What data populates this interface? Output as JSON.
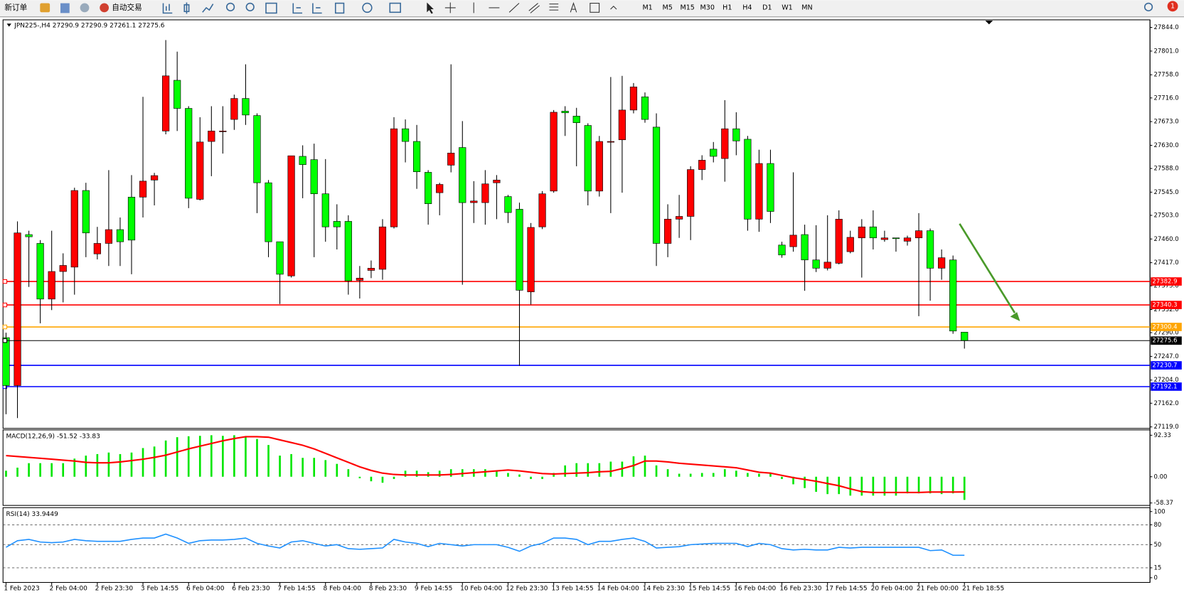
{
  "toolbar": {
    "new_order": "新订单",
    "auto_trading": "自动交易",
    "timeframes": [
      "M1",
      "M5",
      "M15",
      "M30",
      "H1",
      "H4",
      "D1",
      "W1",
      "MN"
    ],
    "notifications": 1
  },
  "chart_data": [
    {
      "type": "candlestick",
      "symbol": "JPN225-,H4",
      "categories": [
        "1 Feb 2023",
        null,
        null,
        null,
        "2 Feb 04:00",
        null,
        null,
        null,
        "2 Feb 23:30",
        null,
        null,
        null,
        "3 Feb 14:55",
        null,
        null,
        null,
        "6 Feb 04:00",
        null,
        null,
        null,
        "6 Feb 23:30",
        null,
        null,
        null,
        "7 Feb 14:55",
        null,
        null,
        null,
        "8 Feb 04:00",
        null,
        null,
        null,
        "8 Feb 23:30",
        null,
        null,
        null,
        "9 Feb 14:55",
        null,
        null,
        null,
        "10 Feb 04:00",
        null,
        null,
        null,
        "12 Feb 23:30",
        null,
        null,
        null,
        "13 Feb 14:55",
        null,
        null,
        null,
        "14 Feb 04:00",
        null,
        null,
        null,
        "14 Feb 23:30",
        null,
        null,
        null,
        "15 Feb 14:55",
        null,
        null,
        null,
        "16 Feb 04:00",
        null,
        null,
        null,
        "16 Feb 23:30",
        null,
        null,
        null,
        "17 Feb 14:55",
        null,
        null,
        null,
        "20 Feb 04:00",
        null,
        null,
        null,
        "21 Feb 00:00",
        null,
        null,
        null,
        "21 Feb 18:55"
      ],
      "open": [
        27281,
        27194,
        27468,
        27452,
        27351,
        27401,
        27409,
        27548,
        27433,
        27452,
        27477,
        27536,
        27536,
        27567,
        27656,
        27748,
        27697,
        27532,
        27637,
        27655,
        27677,
        27715,
        27684,
        27562,
        27455,
        27393,
        27610,
        27604,
        27542,
        27492,
        27492,
        27385,
        27403,
        27405,
        27482,
        27660,
        27637,
        27581,
        27544,
        27594,
        27626,
        27526,
        27526,
        27562,
        27537,
        27514,
        27364,
        27482,
        27547,
        27692,
        27683,
        27666,
        27547,
        27636,
        27640,
        27694,
        27718,
        27663,
        27452,
        27496,
        27501,
        27586,
        27623,
        27606,
        27660,
        27641,
        27496,
        27597,
        27449,
        27446,
        27468,
        27422,
        27407,
        27416,
        27437,
        27462,
        27482,
        27459,
        27462,
        27456,
        27462,
        27475,
        27407,
        27422,
        27290.9
      ],
      "high": [
        27290,
        27492,
        27475,
        27458,
        27475,
        27434,
        27553,
        27562,
        27482,
        27585,
        27499,
        27576,
        27718,
        27580,
        27821,
        27800,
        27701,
        27681,
        27701,
        27701,
        27722,
        27777,
        27688,
        27567,
        27455,
        27611,
        27630,
        27633,
        27605,
        27523,
        27503,
        27411,
        27421,
        27496,
        27681,
        27677,
        27667,
        27585,
        27562,
        27777,
        27674,
        27565,
        27585,
        27576,
        27540,
        27526,
        27489,
        27547,
        27694,
        27701,
        27698,
        27670,
        27647,
        27754,
        27756,
        27743,
        27726,
        27688,
        27523,
        27540,
        27592,
        27612,
        27636,
        27712,
        27690,
        27647,
        27622,
        27622,
        27455,
        27581,
        27486,
        27485,
        27503,
        27512,
        27475,
        27496,
        27512,
        27475,
        27462,
        27466,
        27507,
        27479,
        27441,
        27430,
        27290.9
      ],
      "low": [
        27142,
        27135,
        27373,
        27307,
        27331,
        27345,
        27359,
        27427,
        27423,
        27411,
        27411,
        27396,
        27499,
        27521,
        27650,
        27656,
        27516,
        27530,
        27574,
        27615,
        27658,
        27667,
        27507,
        27427,
        27342,
        27390,
        27534,
        27427,
        27455,
        27441,
        27359,
        27352,
        27389,
        27386,
        27479,
        27599,
        27551,
        27486,
        27503,
        27581,
        27377,
        27489,
        27486,
        27496,
        27489,
        27230,
        27341,
        27478,
        27544,
        27647,
        27592,
        27521,
        27537,
        27507,
        27544,
        27688,
        27671,
        27411,
        27427,
        27462,
        27458,
        27567,
        27599,
        27564,
        27612,
        27475,
        27473,
        27489,
        27426,
        27437,
        27366,
        27400,
        27403,
        27414,
        27434,
        27390,
        27441,
        27455,
        27437,
        27448,
        27320,
        27348,
        27386,
        27288,
        27261.1
      ],
      "close": [
        27194,
        27471,
        27464,
        27351,
        27401,
        27412,
        27548,
        27471,
        27452,
        27477,
        27455,
        27458,
        27565,
        27575,
        27756,
        27697,
        27534,
        27636,
        27656,
        27656,
        27715,
        27685,
        27562,
        27455,
        27396,
        27611,
        27595,
        27542,
        27482,
        27482,
        27384,
        27389,
        27407,
        27482,
        27660,
        27637,
        27582,
        27524,
        27559,
        27616,
        27526,
        27529,
        27560,
        27567,
        27508,
        27367,
        27481,
        27542,
        27690,
        27689,
        27671,
        27547,
        27637,
        27637,
        27694,
        27736,
        27677,
        27452,
        27496,
        27501,
        27586,
        27603,
        27610,
        27660,
        27638,
        27496,
        27597,
        27510,
        27431,
        27467,
        27422,
        27407,
        27418,
        27496,
        27463,
        27482,
        27462,
        27462,
        27461,
        27462,
        27475,
        27407,
        27426,
        27293,
        27275.6
      ],
      "up_color": "#ff0000",
      "down_color": "#00ff00",
      "current_color": "#000000",
      "ylim": [
        27116.3,
        27857.7
      ],
      "yticks": [
        {
          "value": 27844,
          "label": "27844.0"
        },
        {
          "value": 27801,
          "label": "27801.0"
        },
        {
          "value": 27758,
          "label": "27758.0"
        },
        {
          "value": 27716,
          "label": "27716.0"
        },
        {
          "value": 27673,
          "label": "27673.0"
        },
        {
          "value": 27630,
          "label": "27630.0"
        },
        {
          "value": 27588,
          "label": "27588.0"
        },
        {
          "value": 27545,
          "label": "27545.0"
        },
        {
          "value": 27503,
          "label": "27503.0"
        },
        {
          "value": 27460,
          "label": "27460.0"
        },
        {
          "value": 27417,
          "label": "27417.0"
        },
        {
          "value": 27375,
          "label": "27375.0"
        },
        {
          "value": 27332,
          "label": "27332.0"
        },
        {
          "value": 27290,
          "label": "27290.0"
        },
        {
          "value": 27247,
          "label": "27247.0"
        },
        {
          "value": 27204,
          "label": "27204.0"
        },
        {
          "value": 27162,
          "label": "27162.0"
        },
        {
          "value": 27119,
          "label": "27119.0"
        }
      ],
      "levels": [
        {
          "value": 27382.9,
          "color": "#ff0000"
        },
        {
          "value": 27340.3,
          "color": "#ff0000"
        },
        {
          "value": 27300.4,
          "color": "#ffa500"
        },
        {
          "value": 27230.7,
          "color": "#0000ff"
        },
        {
          "value": 27192.1,
          "color": "#0000ff"
        }
      ]
    },
    {
      "type": "macd",
      "title": "MACD(12,26,9)",
      "series": [
        {
          "type": "bar",
          "color": "#00e600",
          "values": [
            13.4,
            20.2,
            30.2,
            30.2,
            30.2,
            30.2,
            40.3,
            47.0,
            50.4,
            53.8,
            50.4,
            53.8,
            63.8,
            67.2,
            80.6,
            88.0,
            90.0,
            91.0,
            92.33,
            91.0,
            92.33,
            88.0,
            84.0,
            70.6,
            47.0,
            50.4,
            42.0,
            42.0,
            37.0,
            28.6,
            16.8,
            -3.4,
            -10.1,
            -13.4,
            -5.0,
            13.4,
            13.4,
            10.1,
            13.4,
            16.8,
            16.8,
            16.8,
            16.8,
            11.8,
            8.4,
            5.0,
            -5.0,
            -5.0,
            8.4,
            25.2,
            30.2,
            30.2,
            30.2,
            33.6,
            33.6,
            45.4,
            47.0,
            25.2,
            16.8,
            6.7,
            6.7,
            8.4,
            8.4,
            16.8,
            13.4,
            8.4,
            6.7,
            6.7,
            -5.0,
            -16.8,
            -25.2,
            -33.6,
            -38.6,
            -38.6,
            -42.0,
            -42.0,
            -42.0,
            -42.0,
            -42.0,
            -37.0,
            -37.0,
            -37.0,
            -38.6,
            -37.0,
            -51.52
          ]
        },
        {
          "type": "line",
          "color": "#ff0000",
          "values": [
            47,
            45,
            43,
            41,
            39,
            37,
            35,
            32,
            31,
            31,
            33,
            36,
            39,
            43,
            48,
            55,
            62,
            68,
            74,
            80,
            85,
            89,
            89,
            88,
            82,
            76,
            70,
            62,
            52,
            42,
            32,
            22,
            14,
            8,
            5,
            4,
            4,
            4,
            4,
            5,
            7,
            9,
            11,
            13,
            15,
            13,
            10,
            7,
            6,
            7,
            8,
            9,
            11,
            12,
            18,
            25,
            35,
            35,
            33,
            30,
            28,
            26,
            24,
            22,
            20,
            15,
            10,
            8,
            3,
            -2,
            -6,
            -10,
            -15,
            -20,
            -27,
            -33,
            -35,
            -35,
            -35,
            -35,
            -35,
            -34,
            -34,
            -34,
            -33.83
          ]
        }
      ],
      "ylim": [
        -63.8,
        104.2
      ],
      "yticks": [
        92.33,
        {
          "value": 0,
          "label": "0.00"
        },
        -58.37
      ]
    },
    {
      "type": "line",
      "title": "RSI(14)",
      "color": "#1e90ff",
      "values": [
        46,
        56,
        58,
        54,
        53,
        54,
        58,
        56,
        55,
        55,
        55,
        58,
        60,
        60,
        66,
        60,
        52,
        56,
        57,
        57,
        58,
        60,
        52,
        48,
        45,
        54,
        56,
        52,
        48,
        50,
        44,
        43,
        44,
        45,
        58,
        54,
        52,
        47,
        52,
        50,
        48,
        50,
        50,
        50,
        46,
        40,
        48,
        52,
        60,
        60,
        58,
        50,
        55,
        55,
        58,
        60,
        55,
        45,
        46,
        47,
        50,
        51,
        52,
        52,
        52,
        47,
        52,
        50,
        44,
        42,
        43,
        42,
        42,
        46,
        45,
        46,
        46,
        46,
        46,
        46,
        46,
        41,
        42,
        34,
        33.9449
      ],
      "ylim": [
        -7.1,
        105.9
      ],
      "yticks": [
        100,
        80,
        50,
        15,
        0
      ]
    }
  ]
}
